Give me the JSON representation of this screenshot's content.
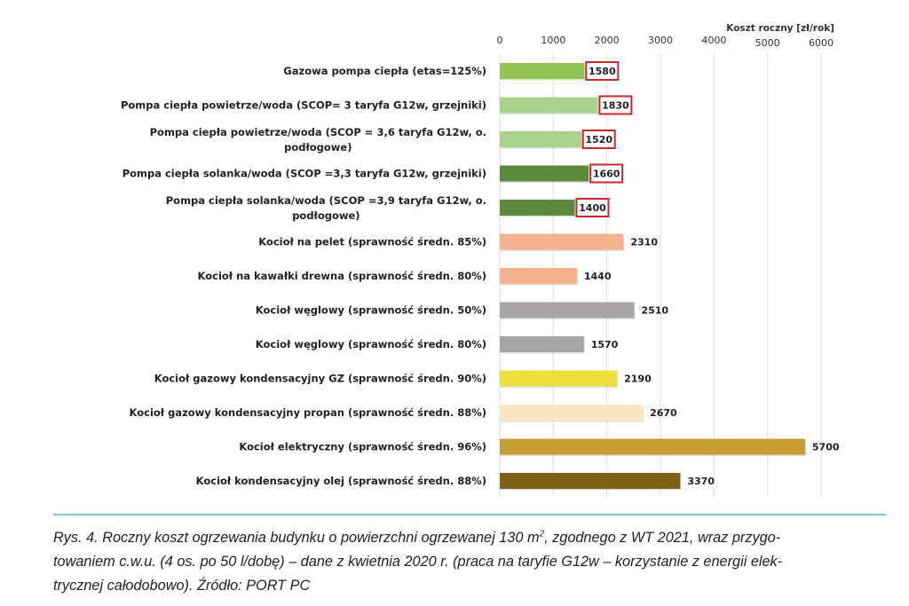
{
  "chart_data": {
    "type": "bar",
    "orientation": "horizontal",
    "xlabel": "Koszt roczny [zł/rok]",
    "xlim": [
      0,
      6000
    ],
    "xticks": [
      "0",
      "1000",
      "2000",
      "3000",
      "4000",
      "5000",
      "6000"
    ],
    "grid": true,
    "categories": [
      "Gazowa pompa ciepła (etas=125%)",
      "Pompa ciepła powietrze/woda (SCOP= 3 taryfa G12w, grzejniki)",
      "Pompa ciepła powietrze/woda (SCOP = 3,6 taryfa G12w, o.\npodłogowe)",
      "Pompa ciepła solanka/woda (SCOP =3,3 taryfa G12w, grzejniki)",
      "Pompa ciepła solanka/woda (SCOP =3,9 taryfa G12w, o.\npodłogowe)",
      "Kocioł na pelet (sprawność średn. 85%)",
      "Kocioł na kawałki drewna (sprawność średn. 80%)",
      "Kocioł węglowy (sprawność średn. 50%)",
      "Kocioł węglowy (sprawność średn. 80%)",
      "Kocioł gazowy kondensacyjny GZ (sprawność średn. 90%)",
      "Kocioł gazowy kondensacyjny propan (sprawność średn. 88%)",
      "Kocioł elektryczny (sprawność średn. 96%)",
      "Kocioł  kondensacyjny olej (sprawność średn. 88%)"
    ],
    "values": [
      1580,
      1830,
      1520,
      1660,
      1400,
      2310,
      1440,
      2510,
      1570,
      2190,
      2670,
      5700,
      3370
    ],
    "value_labels": [
      "1580",
      "1830",
      "1520",
      "1660",
      "1400",
      "2310",
      "1440",
      "2510",
      "1570",
      "2190",
      "2670",
      "5700",
      "3370"
    ],
    "highlighted": [
      true,
      true,
      true,
      true,
      true,
      false,
      false,
      false,
      false,
      false,
      false,
      false,
      false
    ],
    "colors": [
      "#92c353",
      "#a9d38c",
      "#a9d38c",
      "#5a8a3a",
      "#5a8a3a",
      "#f2b28c",
      "#f2b28c",
      "#a6a4a4",
      "#a6a4a4",
      "#ece03c",
      "#fbe6c4",
      "#c79d34",
      "#7d6118"
    ],
    "highlight_color": "#c8282d"
  },
  "caption": {
    "line1_pre": "Rys. 4. Roczny koszt ogrzewania budynku o powierzchni ogrzewanej 130 m",
    "line1_sup": "2",
    "line1_post": ", zgodnego z WT 2021, wraz przygo-",
    "line2": "towaniem c.w.u. (4 os. po 50 l/dobę) – dane z kwietnia 2020 r. (praca na taryfie G12w – korzystanie z energii elek-",
    "line3": "trycznej całodobowo). Źródło: PORT PC"
  }
}
